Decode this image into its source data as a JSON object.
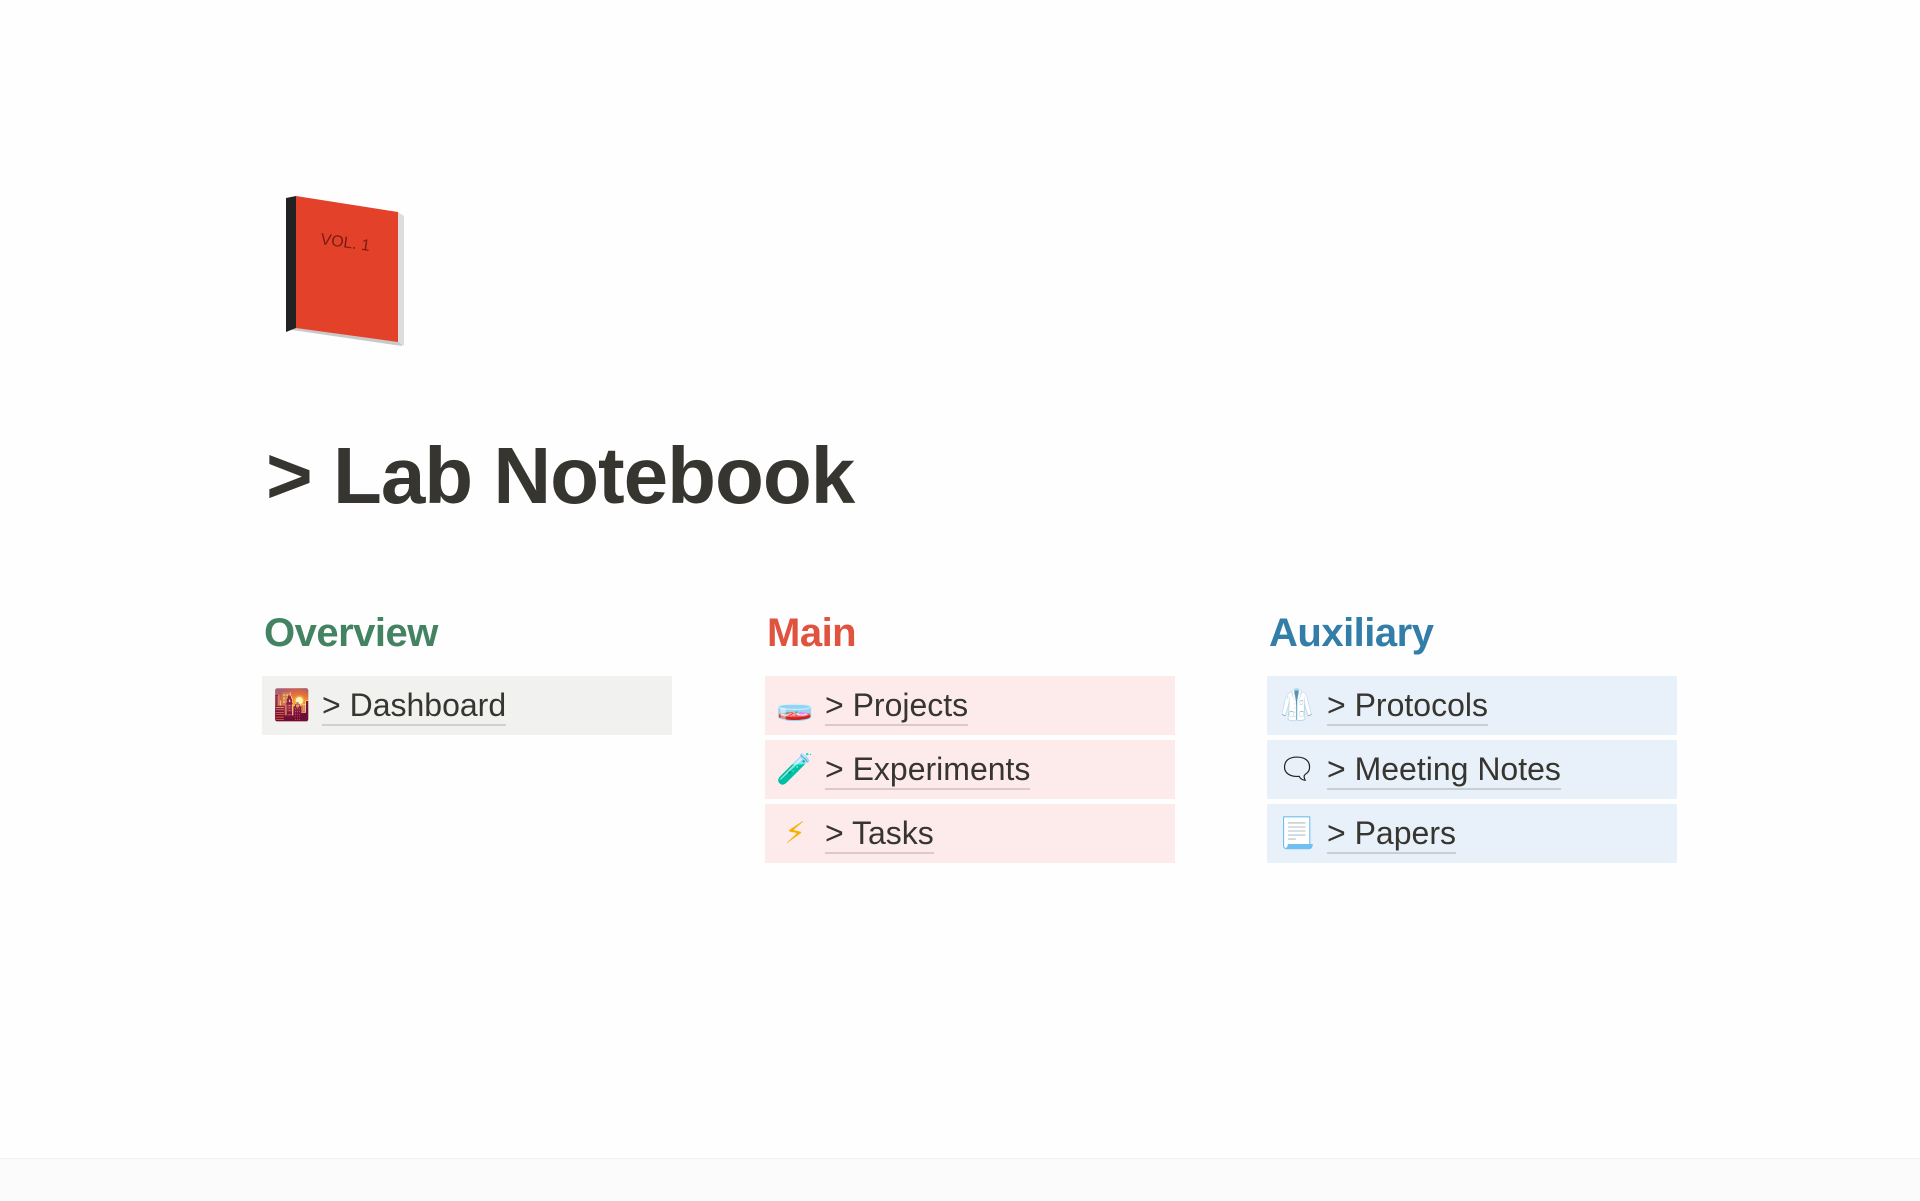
{
  "page": {
    "title": "> Lab Notebook",
    "icon": "red-book-vol-1-icon"
  },
  "sections": [
    {
      "heading": "Overview",
      "color": "#448361",
      "row_bg": "#f1f1ef",
      "items": [
        {
          "label": "> Dashboard",
          "icon": "sunrise-picture-icon",
          "glyph": "🌇"
        }
      ]
    },
    {
      "heading": "Main",
      "color": "#e0533f",
      "row_bg": "#fdebec",
      "items": [
        {
          "label": "> Projects",
          "icon": "petri-dish-icon",
          "glyph": "🧫"
        },
        {
          "label": "> Experiments",
          "icon": "test-tube-icon",
          "glyph": "🧪"
        },
        {
          "label": "> Tasks",
          "icon": "lightning-icon",
          "glyph": "⚡"
        }
      ]
    },
    {
      "heading": "Auxiliary",
      "color": "#337ea9",
      "row_bg": "#e8f0f9",
      "items": [
        {
          "label": "> Protocols",
          "icon": "lab-coat-icon",
          "glyph": "🥼"
        },
        {
          "label": "> Meeting Notes",
          "icon": "speech-bubble-icon",
          "glyph": "🗨"
        },
        {
          "label": "> Papers",
          "icon": "page-curl-icon",
          "glyph": "📃"
        }
      ]
    }
  ]
}
